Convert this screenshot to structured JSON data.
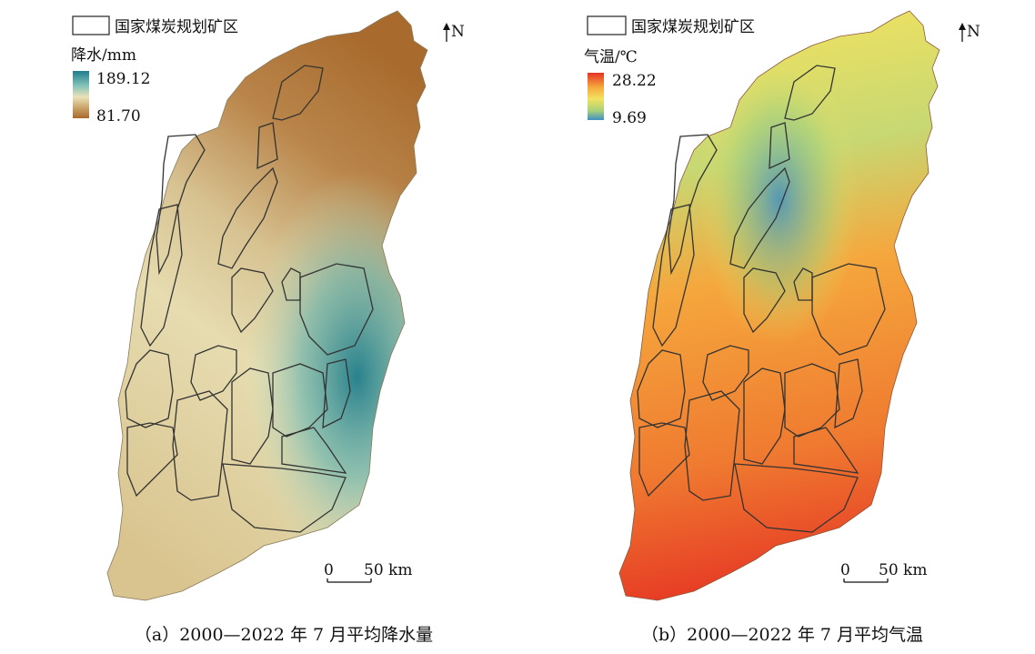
{
  "panels": [
    {
      "id": "a",
      "legend_box_label": "国家煤炭规划矿区",
      "variable_title": "降水/mm",
      "legend_max": "189.12",
      "legend_min": "81.70",
      "gradient": [
        "#1f7d8c",
        "#7fc0b8",
        "#e9e2b8",
        "#c89e63",
        "#a86a2d"
      ],
      "north_label": "N",
      "scale_zero": "0",
      "scale_value": "50 km",
      "caption": "（a）2000—2022 年 7 月平均降水量"
    },
    {
      "id": "b",
      "legend_box_label": "国家煤炭规划矿区",
      "variable_title": "气温/℃",
      "legend_max": "28.22",
      "legend_min": "9.69",
      "gradient": [
        "#e53223",
        "#f5a73d",
        "#f2e25f",
        "#a9d17a",
        "#3f8fc4"
      ],
      "north_label": "N",
      "scale_zero": "0",
      "scale_value": "50 km",
      "caption": "（b）2000—2022 年 7 月平均气温"
    }
  ]
}
